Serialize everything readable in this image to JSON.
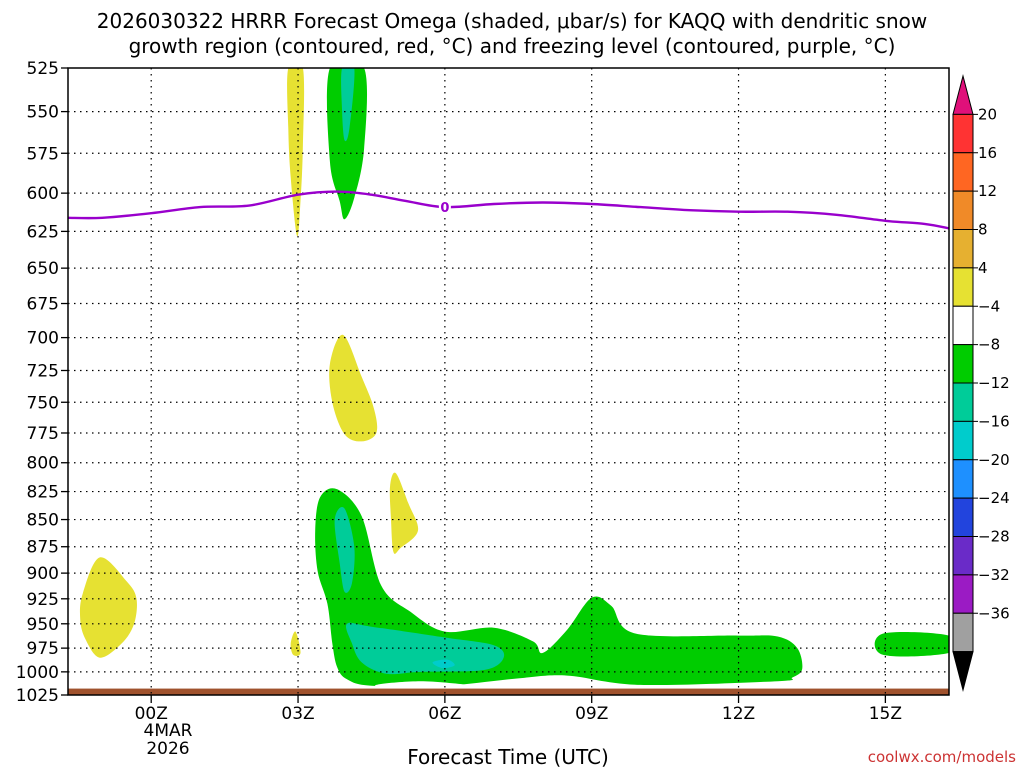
{
  "chart_data": {
    "type": "contour",
    "title_line1": "2026030322 HRRR Forecast Omega (shaded, μbar/s) for KAQQ with dendritic snow",
    "title_line2": "growth region (contoured, red, °C) and freezing level (contoured, purple, °C)",
    "ylabel": "",
    "xlabel": "Forecast Time (UTC)",
    "credit": "coolwx.com/models",
    "y_axis": {
      "scale": "log-pressure",
      "range": [
        1025,
        525
      ],
      "ticks": [
        525,
        550,
        575,
        600,
        625,
        650,
        675,
        700,
        725,
        750,
        775,
        800,
        825,
        850,
        875,
        900,
        925,
        950,
        975,
        1000,
        1025
      ]
    },
    "x_axis": {
      "range_hours": [
        -1.7,
        16.3
      ],
      "ticks": [
        {
          "hour": 0,
          "label": "00Z"
        },
        {
          "hour": 3,
          "label": "03Z"
        },
        {
          "hour": 6,
          "label": "06Z"
        },
        {
          "hour": 9,
          "label": "09Z"
        },
        {
          "hour": 12,
          "label": "12Z"
        },
        {
          "hour": 15,
          "label": "15Z"
        }
      ],
      "date_label_line1": "4MAR",
      "date_label_line2": "2026"
    },
    "freezing_level": {
      "contour_label": "0",
      "color": "#9900cc",
      "points": [
        [
          -1.7,
          616
        ],
        [
          -1.0,
          616
        ],
        [
          0.0,
          613
        ],
        [
          1.0,
          609
        ],
        [
          2.0,
          608
        ],
        [
          3.0,
          601
        ],
        [
          3.8,
          599
        ],
        [
          4.5,
          601
        ],
        [
          5.2,
          605
        ],
        [
          6.0,
          609
        ],
        [
          7.0,
          607
        ],
        [
          8.0,
          606
        ],
        [
          9.0,
          607
        ],
        [
          10.0,
          609
        ],
        [
          11.0,
          611
        ],
        [
          12.0,
          612
        ],
        [
          13.0,
          612
        ],
        [
          14.0,
          614
        ],
        [
          15.0,
          618
        ],
        [
          15.8,
          620
        ],
        [
          16.3,
          623
        ]
      ]
    },
    "omega_regions": [
      {
        "name": "upward-weak",
        "level": "-4 to -8",
        "color": "#00cc00",
        "points": [
          [
            3.65,
            525
          ],
          [
            4.35,
            525
          ],
          [
            4.35,
            572
          ],
          [
            4.15,
            603
          ],
          [
            3.95,
            617
          ],
          [
            3.85,
            605
          ],
          [
            3.65,
            580
          ]
        ]
      },
      {
        "name": "upward-moderate",
        "level": "-8 to -12",
        "color": "#00cc99",
        "points": [
          [
            3.9,
            525
          ],
          [
            4.15,
            525
          ],
          [
            4.05,
            560
          ],
          [
            3.95,
            567
          ],
          [
            3.9,
            550
          ]
        ]
      },
      {
        "name": "upward-weak",
        "level": "-4 to -8",
        "color": "#00cc00",
        "points": [
          [
            3.45,
            830
          ],
          [
            3.8,
            823
          ],
          [
            4.3,
            847
          ],
          [
            4.7,
            912
          ],
          [
            5.3,
            938
          ],
          [
            6.0,
            958
          ],
          [
            7.0,
            954
          ],
          [
            7.8,
            968
          ],
          [
            8.0,
            980
          ],
          [
            8.5,
            956
          ],
          [
            9.0,
            924
          ],
          [
            9.4,
            932
          ],
          [
            9.9,
            960
          ],
          [
            12.0,
            962
          ],
          [
            12.8,
            963
          ],
          [
            13.2,
            975
          ],
          [
            13.3,
            997
          ],
          [
            13.1,
            1006
          ],
          [
            12.8,
            1010
          ],
          [
            10.0,
            1014
          ],
          [
            8.5,
            1004
          ],
          [
            7.5,
            1007
          ],
          [
            6.0,
            1015
          ],
          [
            4.5,
            1015
          ],
          [
            4.0,
            1008
          ],
          [
            3.8,
            995
          ],
          [
            3.7,
            970
          ],
          [
            3.6,
            930
          ],
          [
            3.4,
            898
          ],
          [
            3.35,
            860
          ]
        ]
      },
      {
        "name": "upward-moderate",
        "level": "-8 to -12",
        "color": "#00cc99",
        "points": [
          [
            3.75,
            850
          ],
          [
            3.95,
            840
          ],
          [
            4.15,
            875
          ],
          [
            4.1,
            910
          ],
          [
            3.95,
            918
          ],
          [
            3.85,
            890
          ]
        ]
      },
      {
        "name": "upward-moderate",
        "level": "-8 to -12",
        "color": "#00cc99",
        "points": [
          [
            4.0,
            950
          ],
          [
            4.5,
            953
          ],
          [
            6.0,
            964
          ],
          [
            7.0,
            972
          ],
          [
            7.2,
            985
          ],
          [
            6.8,
            998
          ],
          [
            5.5,
            1000
          ],
          [
            4.8,
            1002
          ],
          [
            4.3,
            990
          ],
          [
            4.1,
            970
          ]
        ]
      },
      {
        "name": "upward-strong",
        "level": "-12 to -16",
        "color": "#00cccc",
        "points": [
          [
            5.75,
            990
          ],
          [
            6.05,
            987
          ],
          [
            6.2,
            993
          ],
          [
            5.95,
            996
          ]
        ]
      },
      {
        "name": "upward-weak",
        "level": "-4 to -8",
        "color": "#00cc00",
        "points": [
          [
            14.95,
            960
          ],
          [
            16.3,
            962
          ],
          [
            16.3,
            980
          ],
          [
            14.95,
            982
          ]
        ]
      },
      {
        "name": "downward-weak",
        "level": "4 to 8",
        "color": "#e6e132",
        "points": [
          [
            2.8,
            525
          ],
          [
            3.1,
            525
          ],
          [
            3.1,
            570
          ],
          [
            3.05,
            605
          ],
          [
            2.98,
            628
          ],
          [
            2.85,
            590
          ],
          [
            2.8,
            560
          ]
        ]
      },
      {
        "name": "downward-weak",
        "level": "4 to 8",
        "color": "#e6e132",
        "points": [
          [
            3.65,
            720
          ],
          [
            3.92,
            698
          ],
          [
            4.3,
            730
          ],
          [
            4.55,
            755
          ],
          [
            4.6,
            775
          ],
          [
            4.3,
            782
          ],
          [
            3.95,
            776
          ],
          [
            3.7,
            750
          ]
        ]
      },
      {
        "name": "downward-weak",
        "level": "4 to 8",
        "color": "#e6e132",
        "points": [
          [
            4.88,
            820
          ],
          [
            5.0,
            809
          ],
          [
            5.25,
            835
          ],
          [
            5.45,
            860
          ],
          [
            5.1,
            876
          ],
          [
            4.95,
            880
          ],
          [
            4.9,
            850
          ]
        ]
      },
      {
        "name": "downward-weak",
        "level": "4 to 8",
        "color": "#e6e132",
        "points": [
          [
            -1.4,
            920
          ],
          [
            -1.05,
            885
          ],
          [
            -0.5,
            908
          ],
          [
            -0.3,
            925
          ],
          [
            -0.35,
            950
          ],
          [
            -0.6,
            970
          ],
          [
            -1.05,
            985
          ],
          [
            -1.35,
            965
          ],
          [
            -1.45,
            945
          ]
        ]
      },
      {
        "name": "downward-weak",
        "level": "4 to 8",
        "color": "#e6e132",
        "points": [
          [
            2.85,
            970
          ],
          [
            2.95,
            958
          ],
          [
            3.05,
            980
          ],
          [
            2.9,
            982
          ]
        ]
      },
      {
        "name": "white-gap",
        "level": "-4 to 4",
        "color": "#ffffff",
        "points": [
          [
            4.6,
            1014
          ],
          [
            5.5,
            1010
          ],
          [
            6.5,
            1014
          ],
          [
            7.0,
            1018
          ],
          [
            5.0,
            1019
          ]
        ]
      }
    ],
    "ground": {
      "color": "#a0522d",
      "top_pressure": 1018
    },
    "colorbar": {
      "labels": [
        "20",
        "16",
        "12",
        "8",
        "4",
        "−4",
        "−8",
        "−12",
        "−16",
        "−20",
        "−24",
        "−28",
        "−32",
        "−36"
      ],
      "bands": [
        {
          "color": "#e0107a",
          "arrow": true
        },
        {
          "color": "#ff3333"
        },
        {
          "color": "#ff6622"
        },
        {
          "color": "#f08a28"
        },
        {
          "color": "#e6b030"
        },
        {
          "color": "#e6e132"
        },
        {
          "color": "#ffffff"
        },
        {
          "color": "#00cc00"
        },
        {
          "color": "#00cc99"
        },
        {
          "color": "#00cccc"
        },
        {
          "color": "#1e90ff"
        },
        {
          "color": "#2244dd"
        },
        {
          "color": "#6a2bc8"
        },
        {
          "color": "#9b1bc4"
        },
        {
          "color": "#a0a0a0"
        },
        {
          "color": "#000000",
          "arrow": true
        }
      ]
    }
  }
}
